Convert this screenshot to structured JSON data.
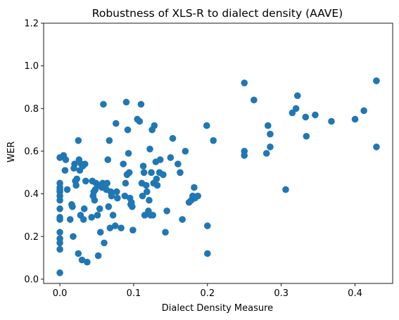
{
  "chart_data": {
    "type": "scatter",
    "title": "Robustness of XLS-R to dialect density (AAVE)",
    "xlabel": "Dialect Density Measure",
    "ylabel": "WER",
    "xlim": [
      -0.022,
      0.451
    ],
    "ylim": [
      -0.02,
      1.2
    ],
    "xticks": [
      0.0,
      0.1,
      0.2,
      0.3,
      0.4
    ],
    "xtick_labels": [
      "0.0",
      "0.1",
      "0.2",
      "0.3",
      "0.4"
    ],
    "yticks": [
      0.0,
      0.2,
      0.4,
      0.6,
      0.8,
      1.0,
      1.2
    ],
    "ytick_labels": [
      "0.0",
      "0.2",
      "0.4",
      "0.6",
      "0.8",
      "1.0",
      "1.2"
    ],
    "grid": false,
    "legend": "none",
    "marker_color": "#1f77b4",
    "points": [
      [
        0.0,
        0.03
      ],
      [
        0.0,
        0.14
      ],
      [
        0.0,
        0.17
      ],
      [
        0.0,
        0.19
      ],
      [
        0.0,
        0.22
      ],
      [
        0.0,
        0.28
      ],
      [
        0.0,
        0.29
      ],
      [
        0.0,
        0.33
      ],
      [
        0.0,
        0.37
      ],
      [
        0.0,
        0.39
      ],
      [
        0.0,
        0.41
      ],
      [
        0.0,
        0.42
      ],
      [
        0.0,
        0.43
      ],
      [
        0.0,
        0.45
      ],
      [
        0.0,
        0.57
      ],
      [
        0.005,
        0.58
      ],
      [
        0.007,
        0.51
      ],
      [
        0.008,
        0.56
      ],
      [
        0.01,
        0.42
      ],
      [
        0.014,
        0.28
      ],
      [
        0.016,
        0.35
      ],
      [
        0.017,
        0.34
      ],
      [
        0.018,
        0.2
      ],
      [
        0.019,
        0.52
      ],
      [
        0.02,
        0.54
      ],
      [
        0.021,
        0.46
      ],
      [
        0.022,
        0.44
      ],
      [
        0.023,
        0.47
      ],
      [
        0.025,
        0.12
      ],
      [
        0.025,
        0.65
      ],
      [
        0.026,
        0.56
      ],
      [
        0.027,
        0.51
      ],
      [
        0.028,
        0.3
      ],
      [
        0.029,
        0.54
      ],
      [
        0.03,
        0.09
      ],
      [
        0.031,
        0.53
      ],
      [
        0.032,
        0.28
      ],
      [
        0.033,
        0.33
      ],
      [
        0.034,
        0.54
      ],
      [
        0.035,
        0.46
      ],
      [
        0.037,
        0.08
      ],
      [
        0.043,
        0.29
      ],
      [
        0.044,
        0.46
      ],
      [
        0.045,
        0.39
      ],
      [
        0.046,
        0.41
      ],
      [
        0.047,
        0.37
      ],
      [
        0.048,
        0.42
      ],
      [
        0.049,
        0.45
      ],
      [
        0.051,
        0.3
      ],
      [
        0.052,
        0.11
      ],
      [
        0.053,
        0.44
      ],
      [
        0.054,
        0.33
      ],
      [
        0.055,
        0.22
      ],
      [
        0.057,
        0.43
      ],
      [
        0.058,
        0.45
      ],
      [
        0.059,
        0.82
      ],
      [
        0.06,
        0.17
      ],
      [
        0.061,
        0.44
      ],
      [
        0.063,
        0.42
      ],
      [
        0.064,
        0.45
      ],
      [
        0.065,
        0.56
      ],
      [
        0.066,
        0.34
      ],
      [
        0.067,
        0.65
      ],
      [
        0.068,
        0.24
      ],
      [
        0.069,
        0.41
      ],
      [
        0.07,
        0.39
      ],
      [
        0.072,
        0.3
      ],
      [
        0.075,
        0.25
      ],
      [
        0.076,
        0.73
      ],
      [
        0.077,
        0.41
      ],
      [
        0.078,
        0.38
      ],
      [
        0.083,
        0.24
      ],
      [
        0.086,
        0.54
      ],
      [
        0.088,
        0.39
      ],
      [
        0.089,
        0.45
      ],
      [
        0.09,
        0.83
      ],
      [
        0.091,
        0.49
      ],
      [
        0.092,
        0.7
      ],
      [
        0.093,
        0.59
      ],
      [
        0.094,
        0.5
      ],
      [
        0.095,
        0.38
      ],
      [
        0.096,
        0.35
      ],
      [
        0.097,
        0.36
      ],
      [
        0.098,
        0.34
      ],
      [
        0.099,
        0.23
      ],
      [
        0.105,
        0.75
      ],
      [
        0.108,
        0.74
      ],
      [
        0.11,
        0.82
      ],
      [
        0.111,
        0.45
      ],
      [
        0.112,
        0.39
      ],
      [
        0.113,
        0.53
      ],
      [
        0.114,
        0.5
      ],
      [
        0.115,
        0.3
      ],
      [
        0.117,
        0.44
      ],
      [
        0.118,
        0.41
      ],
      [
        0.12,
        0.32
      ],
      [
        0.121,
        0.37
      ],
      [
        0.122,
        0.61
      ],
      [
        0.123,
        0.3
      ],
      [
        0.124,
        0.5
      ],
      [
        0.125,
        0.7
      ],
      [
        0.126,
        0.3
      ],
      [
        0.127,
        0.45
      ],
      [
        0.128,
        0.72
      ],
      [
        0.13,
        0.55
      ],
      [
        0.131,
        0.47
      ],
      [
        0.132,
        0.44
      ],
      [
        0.135,
        0.5
      ],
      [
        0.136,
        0.56
      ],
      [
        0.14,
        0.49
      ],
      [
        0.143,
        0.22
      ],
      [
        0.145,
        0.32
      ],
      [
        0.15,
        0.57
      ],
      [
        0.153,
        0.66
      ],
      [
        0.16,
        0.54
      ],
      [
        0.163,
        0.5
      ],
      [
        0.166,
        0.28
      ],
      [
        0.17,
        0.6
      ],
      [
        0.175,
        0.36
      ],
      [
        0.178,
        0.37
      ],
      [
        0.18,
        0.39
      ],
      [
        0.182,
        0.43
      ],
      [
        0.183,
        0.38
      ],
      [
        0.187,
        0.39
      ],
      [
        0.199,
        0.72
      ],
      [
        0.2,
        0.25
      ],
      [
        0.2,
        0.12
      ],
      [
        0.208,
        0.65
      ],
      [
        0.25,
        0.92
      ],
      [
        0.25,
        0.6
      ],
      [
        0.25,
        0.58
      ],
      [
        0.263,
        0.84
      ],
      [
        0.28,
        0.59
      ],
      [
        0.282,
        0.72
      ],
      [
        0.285,
        0.68
      ],
      [
        0.285,
        0.62
      ],
      [
        0.306,
        0.42
      ],
      [
        0.315,
        0.78
      ],
      [
        0.32,
        0.8
      ],
      [
        0.322,
        0.86
      ],
      [
        0.333,
        0.76
      ],
      [
        0.334,
        0.67
      ],
      [
        0.346,
        0.77
      ],
      [
        0.368,
        0.74
      ],
      [
        0.4,
        0.75
      ],
      [
        0.412,
        0.79
      ],
      [
        0.429,
        0.93
      ],
      [
        0.429,
        0.93
      ],
      [
        0.429,
        0.62
      ]
    ]
  }
}
